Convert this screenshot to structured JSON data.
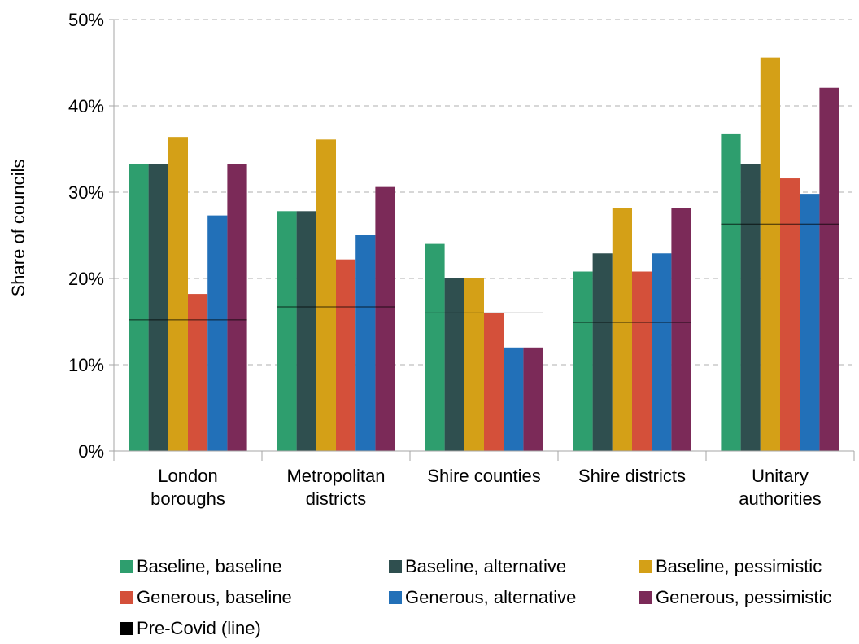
{
  "chart_data": {
    "type": "bar",
    "ylabel": "Share of councils",
    "xlabel": "",
    "ylim": [
      0,
      50
    ],
    "y_ticks": [
      "0%",
      "10%",
      "20%",
      "30%",
      "40%",
      "50%"
    ],
    "grid": "horizontal dashed",
    "legend_position": "bottom",
    "categories": [
      [
        "London",
        "boroughs"
      ],
      [
        "Metropolitan",
        "districts"
      ],
      [
        "Shire counties"
      ],
      [
        "Shire districts"
      ],
      [
        "Unitary",
        "authorities"
      ]
    ],
    "series": [
      {
        "name": "Baseline, baseline",
        "color": "#2e9e6e",
        "values": [
          33.3,
          27.8,
          24.0,
          20.8,
          36.8
        ]
      },
      {
        "name": "Baseline, alternative",
        "color": "#2f4f4f",
        "values": [
          33.3,
          27.8,
          20.0,
          22.9,
          33.3
        ]
      },
      {
        "name": "Baseline, pessimistic",
        "color": "#d4a017",
        "values": [
          36.4,
          36.1,
          20.0,
          28.2,
          45.6
        ]
      },
      {
        "name": "Generous, baseline",
        "color": "#d4503a",
        "values": [
          18.2,
          22.2,
          16.0,
          20.8,
          31.6
        ]
      },
      {
        "name": "Generous, alternative",
        "color": "#2270b8",
        "values": [
          27.3,
          25.0,
          12.0,
          22.9,
          29.8
        ]
      },
      {
        "name": "Generous, pessimistic",
        "color": "#7b2a58",
        "values": [
          33.3,
          30.6,
          12.0,
          28.2,
          42.1
        ]
      }
    ],
    "reference_line": {
      "name": "Pre-Covid (line)",
      "color": "#000000",
      "values": [
        15.2,
        16.7,
        16.0,
        14.9,
        26.3
      ]
    }
  }
}
